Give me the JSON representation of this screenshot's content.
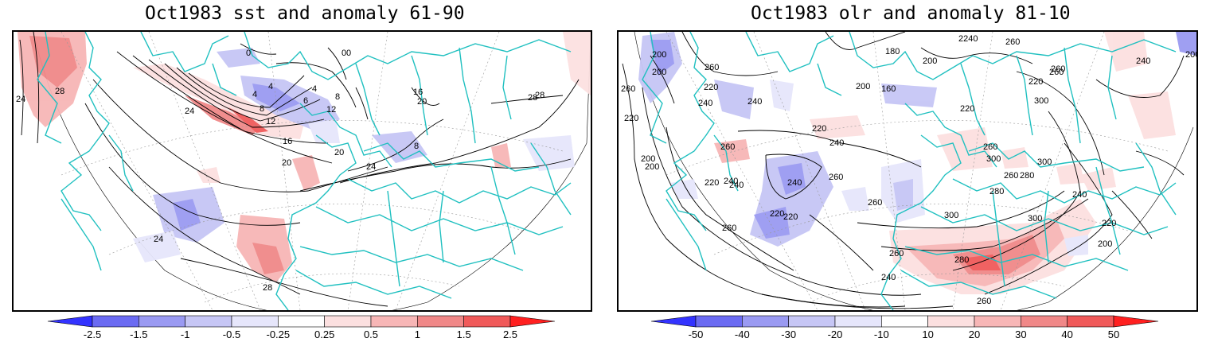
{
  "panels": [
    {
      "title": "Oct1983 sst and anomaly 61-90",
      "contour_labels": [
        "24",
        "28",
        "24",
        "4",
        "0",
        "4",
        "8",
        "12",
        "16",
        "20",
        "20",
        "24",
        "28",
        "16",
        "20",
        "0",
        "4",
        "6",
        "8",
        "12",
        "8",
        "24",
        "28",
        "28",
        "0"
      ],
      "colorbar": {
        "ticks": [
          "-2.5",
          "-1.5",
          "-1",
          "-0.5",
          "-0.25",
          "0.25",
          "0.5",
          "1",
          "1.5",
          "2.5"
        ],
        "colors": [
          "#3333ff",
          "#6b6bf2",
          "#9a9af2",
          "#c6c6f5",
          "#e6e6fb",
          "#ffffff",
          "#fce0e0",
          "#f7b6b6",
          "#f08888",
          "#f05a5a",
          "#ff2020"
        ]
      }
    },
    {
      "title": "Oct1983 olr and anomaly 81-10",
      "contour_labels": [
        "200",
        "200",
        "260",
        "220",
        "240",
        "260",
        "220",
        "240",
        "180",
        "200",
        "160",
        "200",
        "220",
        "2240",
        "260",
        "220",
        "260",
        "240",
        "200",
        "300",
        "260",
        "220",
        "240",
        "260",
        "200",
        "220",
        "240",
        "260",
        "260",
        "240",
        "280",
        "300",
        "300",
        "300",
        "280",
        "260",
        "240",
        "260",
        "220",
        "200",
        "260",
        "240",
        "220",
        "280",
        "300",
        "260",
        "240",
        "260",
        "200",
        "220"
      ],
      "colorbar": {
        "ticks": [
          "-50",
          "-40",
          "-30",
          "-20",
          "-10",
          "10",
          "20",
          "30",
          "40",
          "50"
        ],
        "colors": [
          "#3333ff",
          "#6b6bf2",
          "#9a9af2",
          "#c6c6f5",
          "#e6e6fb",
          "#ffffff",
          "#fce0e0",
          "#f7b6b6",
          "#f08888",
          "#f05a5a",
          "#ff2020"
        ]
      }
    }
  ],
  "colors": {
    "coast": "#20c0c0",
    "contour": "#000000",
    "frame": "#000000",
    "grid": "#999999"
  }
}
